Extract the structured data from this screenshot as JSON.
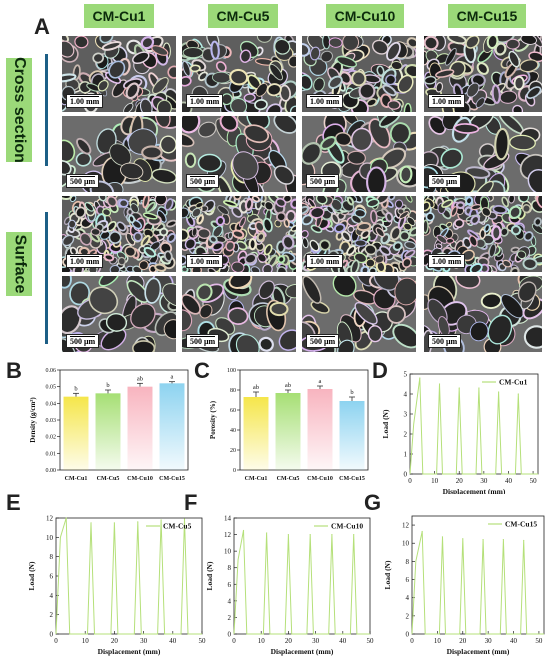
{
  "panel_labels": {
    "A": "A",
    "B": "B",
    "C": "C",
    "D": "D",
    "E": "E",
    "F": "F",
    "G": "G"
  },
  "columns": [
    "CM-Cu1",
    "CM-Cu5",
    "CM-Cu10",
    "CM-Cu15"
  ],
  "row_groups": [
    "Cross section",
    "Surface"
  ],
  "scale_bars": [
    "1.00 mm",
    "500 μm",
    "1.00 mm",
    "500 μm"
  ],
  "colors": {
    "header_green": "#9bd979",
    "accent_blue": "#1d5f86",
    "line_green": "#b5e07a"
  },
  "chart_data": [
    {
      "type": "bar",
      "panel": "B",
      "categories": [
        "CM-Cu1",
        "CM-Cu5",
        "CM-Cu10",
        "CM-Cu15"
      ],
      "values": [
        0.044,
        0.046,
        0.05,
        0.052
      ],
      "errors": [
        0.002,
        0.002,
        0.002,
        0.001
      ],
      "significance": [
        "b",
        "b",
        "ab",
        "a"
      ],
      "bar_colors": [
        "#f5e64a",
        "#a6df74",
        "#f8b4bf",
        "#8dd3f0"
      ],
      "ylabel": "Density (g/cm³)",
      "ylim": [
        0,
        0.06
      ],
      "yticks": [
        "0.00",
        "0.01",
        "0.02",
        "0.03",
        "0.04",
        "0.05",
        "0.06"
      ]
    },
    {
      "type": "bar",
      "panel": "C",
      "categories": [
        "CM-Cu1",
        "CM-Cu5",
        "CM-Cu10",
        "CM-Cu15"
      ],
      "values": [
        73,
        77,
        81,
        69
      ],
      "errors": [
        5,
        3,
        3,
        4
      ],
      "significance": [
        "ab",
        "ab",
        "a",
        "b"
      ],
      "bar_colors": [
        "#f5e64a",
        "#a6df74",
        "#f8b4bf",
        "#8dd3f0"
      ],
      "ylabel": "Porosity (%)",
      "ylim": [
        0,
        100
      ],
      "yticks": [
        "0",
        "20",
        "40",
        "60",
        "80",
        "100"
      ]
    },
    {
      "type": "line",
      "panel": "D",
      "legend": "CM-Cu1",
      "xlabel": "Displacement (mm)",
      "ylabel": "Load (N)",
      "xlim": [
        0,
        52
      ],
      "ylim": [
        0,
        5
      ],
      "xticks": [
        "0",
        "10",
        "20",
        "30",
        "40",
        "50"
      ],
      "yticks": [
        "0",
        "1",
        "2",
        "3",
        "4",
        "5"
      ],
      "peaks": [
        {
          "x": 4,
          "y": 4.8
        },
        {
          "x": 12,
          "y": 4.5
        },
        {
          "x": 20,
          "y": 4.3
        },
        {
          "x": 28,
          "y": 4.3
        },
        {
          "x": 36,
          "y": 4.1
        },
        {
          "x": 44,
          "y": 4.0
        }
      ],
      "ramp_start": [
        1.5,
        2.5
      ]
    },
    {
      "type": "line",
      "panel": "E",
      "legend": "CM-Cu5",
      "xlabel": "Displacement (mm)",
      "ylabel": "Load (N)",
      "xlim": [
        0,
        50
      ],
      "ylim": [
        0,
        12
      ],
      "xticks": [
        "0",
        "10",
        "20",
        "30",
        "40",
        "50"
      ],
      "yticks": [
        "0",
        "2",
        "4",
        "6",
        "8",
        "10",
        "12"
      ],
      "peaks": [
        {
          "x": 3.5,
          "y": 12
        },
        {
          "x": 12,
          "y": 11.5
        },
        {
          "x": 20,
          "y": 11.5
        },
        {
          "x": 28,
          "y": 11.6
        },
        {
          "x": 36,
          "y": 11.8
        },
        {
          "x": 44,
          "y": 11.9
        }
      ],
      "ramp_start": [
        1.5,
        10
      ]
    },
    {
      "type": "line",
      "panel": "F",
      "legend": "CM-Cu10",
      "xlabel": "Displacement (mm)",
      "ylabel": "Load (N)",
      "xlim": [
        0,
        50
      ],
      "ylim": [
        0,
        14
      ],
      "xticks": [
        "0",
        "10",
        "20",
        "30",
        "40",
        "50"
      ],
      "yticks": [
        "0",
        "2",
        "4",
        "6",
        "8",
        "10",
        "12",
        "14"
      ],
      "peaks": [
        {
          "x": 3.5,
          "y": 12.5
        },
        {
          "x": 12,
          "y": 12.2
        },
        {
          "x": 20,
          "y": 12.0
        },
        {
          "x": 28,
          "y": 12.0
        },
        {
          "x": 36,
          "y": 12.0
        },
        {
          "x": 44,
          "y": 12.0
        }
      ],
      "ramp_start": [
        1.5,
        9
      ]
    },
    {
      "type": "line",
      "panel": "G",
      "legend": "CM-Cu15",
      "xlabel": "Displacement (mm)",
      "ylabel": "Load (N)",
      "xlim": [
        0,
        52
      ],
      "ylim": [
        0,
        13
      ],
      "xticks": [
        "0",
        "10",
        "20",
        "30",
        "40",
        "50"
      ],
      "yticks": [
        "0",
        "2",
        "4",
        "6",
        "8",
        "10",
        "12"
      ],
      "peaks": [
        {
          "x": 4,
          "y": 11.3
        },
        {
          "x": 12,
          "y": 10.7
        },
        {
          "x": 20,
          "y": 10.5
        },
        {
          "x": 28,
          "y": 10.4
        },
        {
          "x": 36,
          "y": 10.4
        },
        {
          "x": 44,
          "y": 10.3
        }
      ],
      "ramp_start": [
        1.5,
        8
      ]
    }
  ]
}
